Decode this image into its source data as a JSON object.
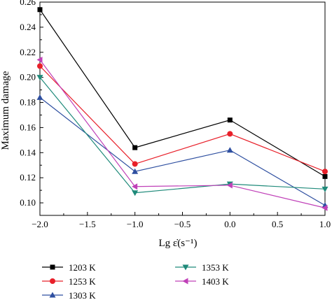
{
  "chart_data": {
    "type": "line",
    "xlabel": "Lg ε̇(s⁻¹)",
    "ylabel": "Maximum damage",
    "xlim": [
      -2.0,
      1.0
    ],
    "ylim": [
      0.09,
      0.26
    ],
    "x_ticks": [
      "−2.0",
      "−1.5",
      "−1.0",
      "−0.5",
      "0.0",
      "0.5",
      "1.0"
    ],
    "y_ticks": [
      "0.10",
      "0.12",
      "0.14",
      "0.16",
      "0.18",
      "0.20",
      "0.22",
      "0.24",
      "0.26"
    ],
    "x": [
      -2.0,
      -1.0,
      0.0,
      1.0
    ],
    "legend_position": "bottom",
    "series": [
      {
        "name": "1203 K",
        "color": "#000000",
        "marker": "square",
        "values": [
          0.254,
          0.144,
          0.166,
          0.121
        ]
      },
      {
        "name": "1253 K",
        "color": "#e8202a",
        "marker": "circle",
        "values": [
          0.209,
          0.131,
          0.155,
          0.125
        ]
      },
      {
        "name": "1303 K",
        "color": "#2e4fa0",
        "marker": "triangle-up",
        "values": [
          0.184,
          0.125,
          0.142,
          0.098
        ]
      },
      {
        "name": "1353 K",
        "color": "#1f8a7a",
        "marker": "triangle-down",
        "values": [
          0.2,
          0.108,
          0.115,
          0.111
        ]
      },
      {
        "name": "1403 K",
        "color": "#c040b8",
        "marker": "triangle-left",
        "values": [
          0.214,
          0.113,
          0.114,
          0.096
        ]
      }
    ]
  }
}
